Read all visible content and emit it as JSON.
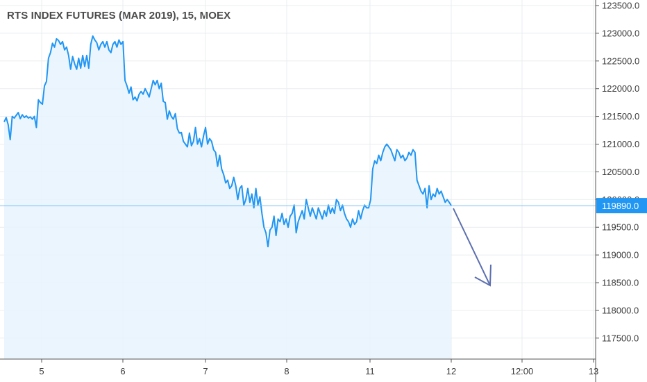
{
  "chart_data": {
    "type": "area",
    "title": "RTS INDEX FUTURES (MAR 2019), 15, MOEX",
    "xlabel": "",
    "ylabel": "",
    "ylim": [
      117250,
      123650
    ],
    "y_ticks": [
      "117500.0",
      "118000.0",
      "118500.0",
      "119000.0",
      "119500.0",
      "120000.0",
      "120500.0",
      "121000.0",
      "121500.0",
      "122000.0",
      "122500.0",
      "123000.0",
      "123500.0"
    ],
    "x_ticks": [
      "5",
      "6",
      "7",
      "8",
      "11",
      "12",
      "12:00",
      "13"
    ],
    "last_price": 119890,
    "last_price_label": "119890.0",
    "colors": {
      "line": "#2196f3",
      "area": "#e8f3fd",
      "price_line": "#7cc4f5",
      "price_tag": "#2196f3",
      "grid": "#eaecef",
      "arrow": "#5b6fae"
    },
    "grid": true,
    "annotation": "downward arrow projecting decline from last price",
    "series": [
      {
        "values": [
          121400,
          121480,
          121350,
          121080,
          121500,
          121470,
          121520,
          121570,
          121460,
          121530,
          121480,
          121510,
          121470,
          121490,
          121450,
          121500,
          121300,
          121800,
          121750,
          121720,
          122050,
          122130,
          122550,
          122650,
          122820,
          122750,
          122900,
          122870,
          122800,
          122850,
          122700,
          122750,
          122600,
          122350,
          122580,
          122450,
          122350,
          122550,
          122370,
          122600,
          122400,
          122600,
          122370,
          122800,
          122950,
          122880,
          122830,
          122700,
          122800,
          122850,
          122750,
          122850,
          122700,
          122650,
          122800,
          122850,
          122750,
          122880,
          122800,
          122850,
          122150,
          122050,
          121920,
          122030,
          121800,
          121850,
          121780,
          121900,
          121950,
          121900,
          122000,
          121930,
          121850,
          122000,
          122150,
          122070,
          122150,
          122000,
          122100,
          121770,
          121750,
          121450,
          121600,
          121500,
          121450,
          121550,
          121280,
          121200,
          121210,
          121050,
          121000,
          120950,
          121200,
          120970,
          121050,
          121300,
          121000,
          121100,
          120950,
          121150,
          121300,
          121000,
          121100,
          121050,
          120900,
          120850,
          120600,
          120800,
          120550,
          120450,
          120300,
          120350,
          120200,
          120250,
          120400,
          120250,
          120000,
          120200,
          120250,
          119900,
          120000,
          120200,
          119950,
          120100,
          119850,
          120200,
          119900,
          120050,
          119750,
          119500,
          119400,
          119150,
          119450,
          119500,
          119700,
          119350,
          119650,
          119600,
          119750,
          119550,
          119650,
          119500,
          119700,
          119750,
          119900,
          119400,
          119600,
          119700,
          119800,
          119650,
          120000,
          119850,
          119700,
          119850,
          119750,
          119650,
          119850,
          119750,
          119650,
          119800,
          119700,
          119900,
          119750,
          119850,
          119750,
          120000,
          119950,
          119800,
          119900,
          119750,
          119650,
          119600,
          119500,
          119650,
          119550,
          119600,
          119800,
          119650,
          119800,
          119900,
          119850,
          119850,
          120000,
          120550,
          120700,
          120650,
          120800,
          120700,
          120850,
          120950,
          121000,
          120950,
          120900,
          120800,
          120700,
          120900,
          120850,
          120750,
          120800,
          120700,
          120750,
          120850,
          120800,
          120900,
          120850,
          120350,
          120250,
          120150,
          120100,
          120200,
          119850,
          120250,
          120000,
          120100,
          120050,
          120200,
          120100,
          120150,
          120050,
          119950,
          120000,
          119950,
          119890
        ]
      }
    ]
  }
}
